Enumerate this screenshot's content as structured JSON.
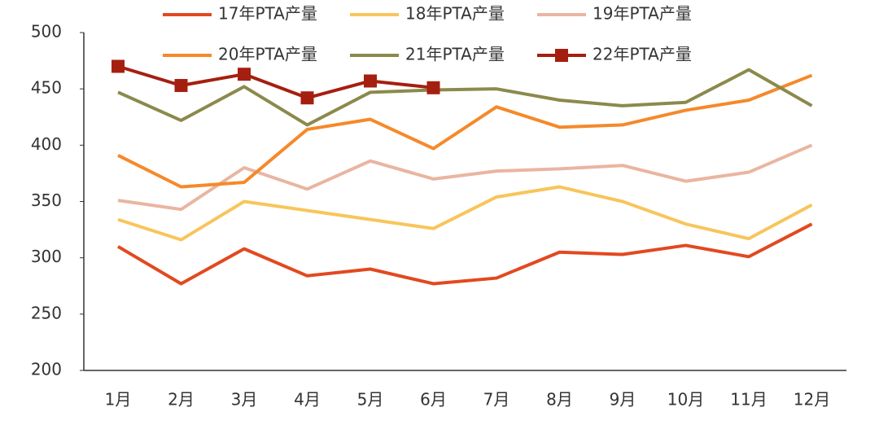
{
  "chart_data": {
    "type": "line",
    "categories": [
      "1月",
      "2月",
      "3月",
      "4月",
      "5月",
      "6月",
      "7月",
      "8月",
      "9月",
      "10月",
      "11月",
      "12月"
    ],
    "series": [
      {
        "name": "17年PTA产量",
        "color": "#e2491f",
        "values": [
          310,
          277,
          308,
          284,
          290,
          277,
          282,
          305,
          303,
          311,
          301,
          330
        ]
      },
      {
        "name": "18年PTA产量",
        "color": "#f8c55c",
        "values": [
          334,
          316,
          350,
          342,
          334,
          326,
          354,
          363,
          350,
          330,
          317,
          347
        ]
      },
      {
        "name": "19年PTA产量",
        "color": "#e9b5a1",
        "values": [
          351,
          343,
          380,
          361,
          386,
          370,
          377,
          379,
          382,
          368,
          376,
          400
        ]
      },
      {
        "name": "20年PTA产量",
        "color": "#f5892a",
        "values": [
          391,
          363,
          367,
          414,
          423,
          397,
          434,
          416,
          418,
          431,
          440,
          462
        ]
      },
      {
        "name": "21年PTA产量",
        "color": "#8b8a4c",
        "values": [
          447,
          422,
          452,
          418,
          447,
          449,
          450,
          440,
          435,
          438,
          467,
          435
        ]
      },
      {
        "name": "22年PTA产量",
        "color": "#a51f10",
        "marker": "square",
        "values": [
          470,
          453,
          463,
          442,
          457,
          451,
          null,
          null,
          null,
          null,
          null,
          null
        ]
      }
    ],
    "ylim": [
      200,
      500
    ],
    "yticks": [
      200,
      250,
      300,
      350,
      400,
      450,
      500
    ]
  }
}
